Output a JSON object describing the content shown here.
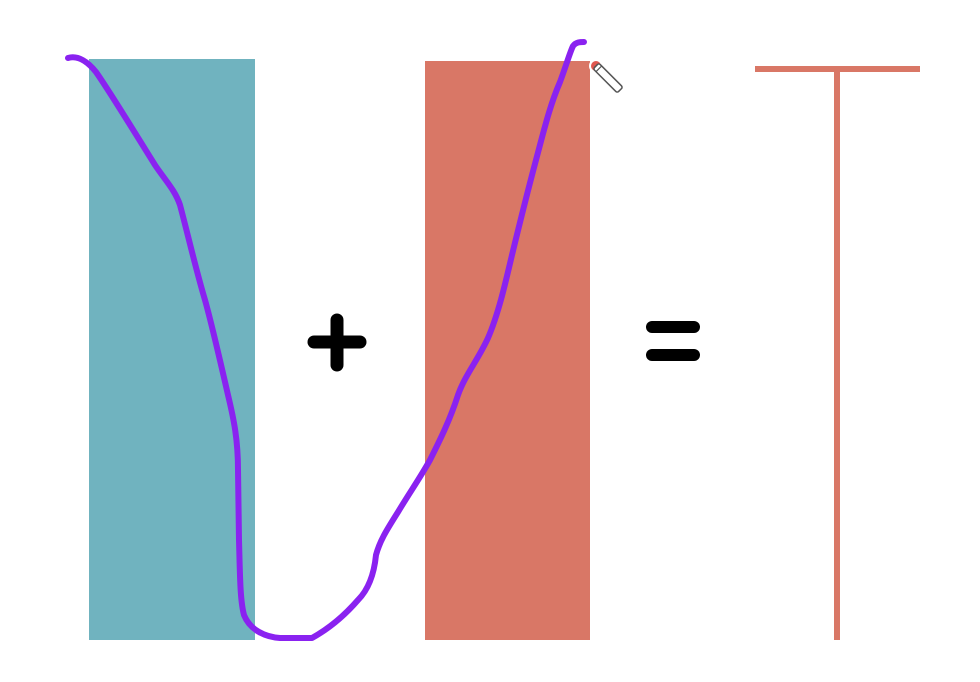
{
  "colors": {
    "background": "#ffffff",
    "teal_bar": "#70b3bf",
    "salmon_bar": "#d97766",
    "t_shape": "#d97766",
    "operator": "#000000",
    "ink": "#8a22f0",
    "pen_cursor": "#e0574f"
  },
  "diagram": {
    "elements": [
      {
        "name": "teal-bar",
        "shape": "rectangle"
      },
      {
        "name": "plus-sign",
        "symbol": "plus"
      },
      {
        "name": "salmon-bar",
        "shape": "rectangle"
      },
      {
        "name": "equals-sign",
        "symbol": "equals"
      },
      {
        "name": "t-shape",
        "shape": "T"
      }
    ],
    "annotation": {
      "name": "hand-drawn-u-curve",
      "tool": "pen"
    }
  },
  "icons": {
    "cursor": "pen-cursor-icon"
  }
}
